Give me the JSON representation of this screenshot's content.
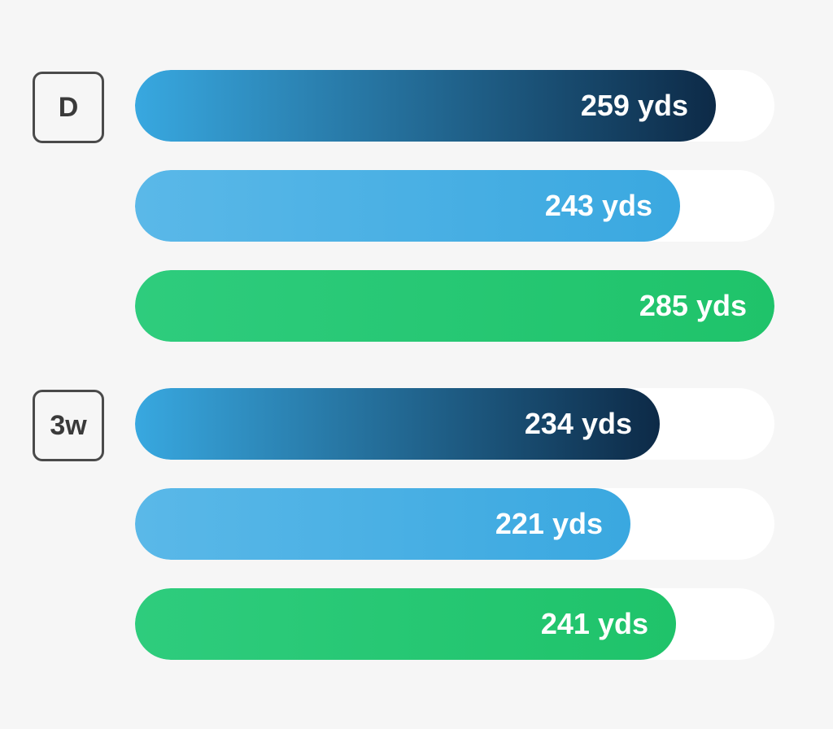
{
  "chart_data": {
    "type": "bar",
    "orientation": "horizontal",
    "max_value": 285,
    "colors": {
      "series_dark": [
        "#38a8e0",
        "#0d2a47"
      ],
      "series_light": [
        "#5ab8e8",
        "#3aa8e0"
      ],
      "series_green": [
        "#2ecc7d",
        "#1fc36a"
      ],
      "track": "#ffffff",
      "badge_border": "#4a4a4a",
      "background": "#f6f6f6"
    },
    "groups": [
      {
        "label": "D",
        "bars": [
          {
            "value": 259,
            "text": "259 yds",
            "style": "series_dark"
          },
          {
            "value": 243,
            "text": "243 yds",
            "style": "series_light"
          },
          {
            "value": 285,
            "text": "285 yds",
            "style": "series_green"
          }
        ]
      },
      {
        "label": "3w",
        "bars": [
          {
            "value": 234,
            "text": "234 yds",
            "style": "series_dark"
          },
          {
            "value": 221,
            "text": "221 yds",
            "style": "series_light"
          },
          {
            "value": 241,
            "text": "241 yds",
            "style": "series_green"
          }
        ]
      }
    ]
  }
}
